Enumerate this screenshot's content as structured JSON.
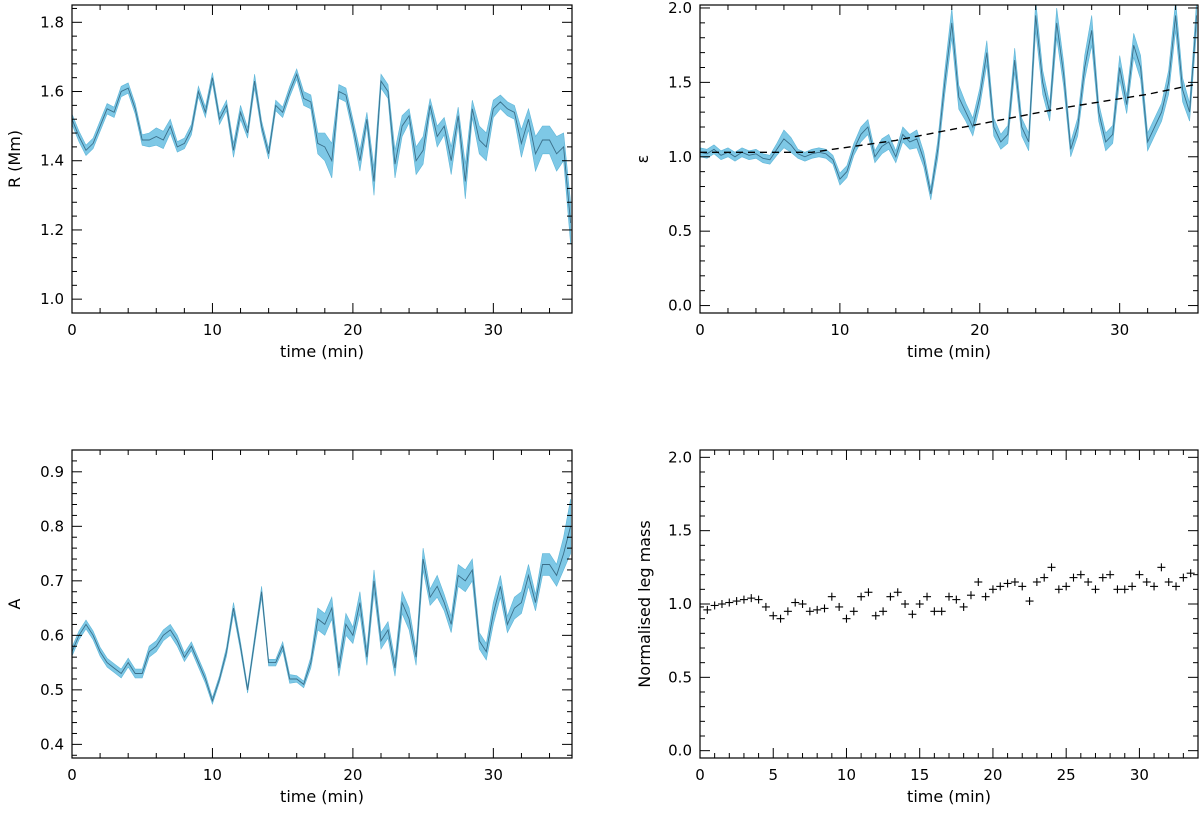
{
  "chart_data": [
    {
      "type": "area",
      "id": "r",
      "xlabel": "time (min)",
      "ylabel": "R (Mm)",
      "xlim": [
        0,
        35.6
      ],
      "ylim": [
        0.96,
        1.85
      ],
      "xticks": [
        0,
        10,
        20,
        30
      ],
      "yticks": [
        1.0,
        1.2,
        1.4,
        1.6,
        1.8
      ],
      "ytick_labels": [
        "1.0",
        "1.2",
        "1.4",
        "1.6",
        "1.8"
      ],
      "x": [
        0,
        0.5,
        1,
        1.5,
        2,
        2.5,
        3,
        3.5,
        4,
        4.5,
        5,
        5.5,
        6,
        6.5,
        7,
        7.5,
        8,
        8.5,
        9,
        9.5,
        10,
        10.5,
        11,
        11.5,
        12,
        12.5,
        13,
        13.5,
        14,
        14.5,
        15,
        15.5,
        16,
        16.5,
        17,
        17.5,
        18,
        18.5,
        19,
        19.5,
        20,
        20.5,
        21,
        21.5,
        22,
        22.5,
        23,
        23.5,
        24,
        24.5,
        25,
        25.5,
        26,
        26.5,
        27,
        27.5,
        28,
        28.5,
        29,
        29.5,
        30,
        30.5,
        31,
        31.5,
        32,
        32.5,
        33,
        33.5,
        34,
        34.5,
        35,
        35.5
      ],
      "y": [
        1.52,
        1.47,
        1.43,
        1.45,
        1.5,
        1.55,
        1.54,
        1.6,
        1.61,
        1.55,
        1.46,
        1.46,
        1.47,
        1.46,
        1.5,
        1.44,
        1.45,
        1.49,
        1.6,
        1.54,
        1.64,
        1.52,
        1.56,
        1.43,
        1.54,
        1.48,
        1.63,
        1.5,
        1.42,
        1.56,
        1.54,
        1.6,
        1.65,
        1.58,
        1.57,
        1.45,
        1.44,
        1.4,
        1.6,
        1.59,
        1.5,
        1.4,
        1.52,
        1.34,
        1.63,
        1.6,
        1.39,
        1.5,
        1.53,
        1.4,
        1.43,
        1.56,
        1.47,
        1.5,
        1.4,
        1.53,
        1.34,
        1.55,
        1.46,
        1.44,
        1.55,
        1.57,
        1.55,
        1.54,
        1.45,
        1.52,
        1.42,
        1.46,
        1.46,
        1.42,
        1.44,
        1.22
      ],
      "err": [
        0.015,
        0.015,
        0.015,
        0.015,
        0.015,
        0.015,
        0.015,
        0.015,
        0.015,
        0.015,
        0.015,
        0.02,
        0.025,
        0.025,
        0.02,
        0.015,
        0.015,
        0.015,
        0.015,
        0.015,
        0.015,
        0.015,
        0.015,
        0.02,
        0.02,
        0.015,
        0.02,
        0.015,
        0.015,
        0.015,
        0.015,
        0.015,
        0.015,
        0.02,
        0.02,
        0.03,
        0.04,
        0.05,
        0.02,
        0.02,
        0.02,
        0.03,
        0.02,
        0.04,
        0.02,
        0.02,
        0.04,
        0.03,
        0.02,
        0.04,
        0.04,
        0.02,
        0.03,
        0.025,
        0.04,
        0.025,
        0.05,
        0.025,
        0.04,
        0.04,
        0.025,
        0.02,
        0.02,
        0.02,
        0.04,
        0.03,
        0.05,
        0.04,
        0.04,
        0.05,
        0.04,
        0.06
      ]
    },
    {
      "type": "area",
      "id": "eps",
      "xlabel": "time (min)",
      "ylabel": "ε",
      "xlim": [
        0,
        35.6
      ],
      "ylim": [
        -0.05,
        2.02
      ],
      "xticks": [
        0,
        10,
        20,
        30
      ],
      "yticks": [
        0.0,
        0.5,
        1.0,
        1.5,
        2.0
      ],
      "ytick_labels": [
        "0.0",
        "0.5",
        "1.0",
        "1.5",
        "2.0"
      ],
      "x": [
        0,
        0.5,
        1,
        1.5,
        2,
        2.5,
        3,
        3.5,
        4,
        4.5,
        5,
        5.5,
        6,
        6.5,
        7,
        7.5,
        8,
        8.5,
        9,
        9.5,
        10,
        10.5,
        11,
        11.5,
        12,
        12.5,
        13,
        13.5,
        14,
        14.5,
        15,
        15.5,
        16,
        16.5,
        17,
        17.5,
        18,
        18.5,
        19,
        19.5,
        20,
        20.5,
        21,
        21.5,
        22,
        22.5,
        23,
        23.5,
        24,
        24.5,
        25,
        25.5,
        26,
        26.5,
        27,
        27.5,
        28,
        28.5,
        29,
        29.5,
        30,
        30.5,
        31,
        31.5,
        32,
        32.5,
        33,
        33.5,
        34,
        34.5,
        35,
        35.5
      ],
      "y": [
        1.03,
        1.02,
        1.05,
        1.01,
        1.03,
        1.0,
        1.03,
        1.01,
        1.02,
        0.99,
        0.98,
        1.05,
        1.12,
        1.08,
        1.02,
        1.0,
        1.02,
        1.03,
        1.02,
        0.98,
        0.85,
        0.9,
        1.05,
        1.15,
        1.2,
        1.0,
        1.07,
        1.1,
        1.0,
        1.15,
        1.1,
        1.12,
        0.98,
        0.75,
        1.05,
        1.5,
        1.9,
        1.4,
        1.3,
        1.2,
        1.4,
        1.7,
        1.2,
        1.1,
        1.15,
        1.65,
        1.2,
        1.1,
        1.95,
        1.5,
        1.3,
        1.9,
        1.55,
        1.05,
        1.2,
        1.6,
        1.85,
        1.3,
        1.1,
        1.15,
        1.6,
        1.35,
        1.75,
        1.6,
        1.1,
        1.2,
        1.3,
        1.5,
        1.95,
        1.45,
        1.3,
        1.95
      ],
      "err": [
        0.03,
        0.03,
        0.03,
        0.03,
        0.03,
        0.03,
        0.03,
        0.03,
        0.03,
        0.03,
        0.03,
        0.04,
        0.06,
        0.05,
        0.03,
        0.03,
        0.03,
        0.03,
        0.03,
        0.03,
        0.04,
        0.04,
        0.04,
        0.05,
        0.05,
        0.04,
        0.05,
        0.05,
        0.04,
        0.05,
        0.05,
        0.06,
        0.05,
        0.04,
        0.06,
        0.08,
        0.1,
        0.08,
        0.06,
        0.06,
        0.06,
        0.08,
        0.06,
        0.05,
        0.06,
        0.08,
        0.06,
        0.06,
        0.1,
        0.08,
        0.06,
        0.1,
        0.08,
        0.05,
        0.06,
        0.08,
        0.1,
        0.06,
        0.06,
        0.06,
        0.08,
        0.06,
        0.08,
        0.08,
        0.06,
        0.06,
        0.06,
        0.08,
        0.1,
        0.08,
        0.06,
        0.1
      ],
      "trend": {
        "x": [
          0,
          8,
          14,
          20,
          26,
          32,
          35.6
        ],
        "y": [
          1.03,
          1.03,
          1.11,
          1.22,
          1.33,
          1.42,
          1.49
        ]
      }
    },
    {
      "type": "area",
      "id": "a",
      "xlabel": "time (min)",
      "ylabel": "A",
      "xlim": [
        0,
        35.6
      ],
      "ylim": [
        0.375,
        0.94
      ],
      "xticks": [
        0,
        10,
        20,
        30
      ],
      "yticks": [
        0.4,
        0.5,
        0.6,
        0.7,
        0.8,
        0.9
      ],
      "ytick_labels": [
        "0.4",
        "0.5",
        "0.6",
        "0.7",
        "0.8",
        "0.9"
      ],
      "x": [
        0,
        0.5,
        1,
        1.5,
        2,
        2.5,
        3,
        3.5,
        4,
        4.5,
        5,
        5.5,
        6,
        6.5,
        7,
        7.5,
        8,
        8.5,
        9,
        9.5,
        10,
        10.5,
        11,
        11.5,
        12,
        12.5,
        13,
        13.5,
        14,
        14.5,
        15,
        15.5,
        16,
        16.5,
        17,
        17.5,
        18,
        18.5,
        19,
        19.5,
        20,
        20.5,
        21,
        21.5,
        22,
        22.5,
        23,
        23.5,
        24,
        24.5,
        25,
        25.5,
        26,
        26.5,
        27,
        27.5,
        28,
        28.5,
        29,
        29.5,
        30,
        30.5,
        31,
        31.5,
        32,
        32.5,
        33,
        33.5,
        34,
        34.5,
        35,
        35.5
      ],
      "y": [
        0.57,
        0.6,
        0.62,
        0.6,
        0.57,
        0.55,
        0.54,
        0.53,
        0.55,
        0.53,
        0.53,
        0.57,
        0.58,
        0.6,
        0.61,
        0.59,
        0.56,
        0.58,
        0.55,
        0.52,
        0.48,
        0.52,
        0.57,
        0.65,
        0.58,
        0.5,
        0.59,
        0.68,
        0.55,
        0.55,
        0.58,
        0.52,
        0.52,
        0.51,
        0.55,
        0.63,
        0.62,
        0.65,
        0.54,
        0.62,
        0.6,
        0.66,
        0.56,
        0.7,
        0.59,
        0.61,
        0.54,
        0.66,
        0.63,
        0.56,
        0.74,
        0.67,
        0.69,
        0.66,
        0.62,
        0.71,
        0.7,
        0.72,
        0.59,
        0.57,
        0.64,
        0.69,
        0.62,
        0.65,
        0.66,
        0.71,
        0.66,
        0.73,
        0.73,
        0.71,
        0.75,
        0.8
      ],
      "err": [
        0.008,
        0.008,
        0.008,
        0.008,
        0.008,
        0.008,
        0.008,
        0.008,
        0.008,
        0.008,
        0.008,
        0.01,
        0.01,
        0.01,
        0.01,
        0.01,
        0.008,
        0.008,
        0.008,
        0.008,
        0.006,
        0.006,
        0.008,
        0.01,
        0.008,
        0.006,
        0.008,
        0.01,
        0.006,
        0.006,
        0.008,
        0.008,
        0.006,
        0.006,
        0.01,
        0.02,
        0.02,
        0.02,
        0.015,
        0.02,
        0.015,
        0.02,
        0.015,
        0.02,
        0.015,
        0.015,
        0.015,
        0.02,
        0.02,
        0.015,
        0.02,
        0.015,
        0.02,
        0.015,
        0.015,
        0.02,
        0.02,
        0.02,
        0.015,
        0.015,
        0.02,
        0.02,
        0.015,
        0.02,
        0.02,
        0.02,
        0.015,
        0.02,
        0.02,
        0.02,
        0.03,
        0.05
      ]
    },
    {
      "type": "scatter",
      "id": "mass",
      "xlabel": "time (min)",
      "ylabel": "Normalised leg mass",
      "xlim": [
        0,
        34
      ],
      "ylim": [
        -0.05,
        2.05
      ],
      "xticks": [
        0,
        5,
        10,
        15,
        20,
        25,
        30
      ],
      "yticks": [
        0.0,
        0.5,
        1.0,
        1.5,
        2.0
      ],
      "ytick_labels": [
        "0.0",
        "0.5",
        "1.0",
        "1.5",
        "2.0"
      ],
      "x": [
        0,
        0.5,
        1,
        1.5,
        2,
        2.5,
        3,
        3.5,
        4,
        4.5,
        5,
        5.5,
        6,
        6.5,
        7,
        7.5,
        8,
        8.5,
        9,
        9.5,
        10,
        10.5,
        11,
        11.5,
        12,
        12.5,
        13,
        13.5,
        14,
        14.5,
        15,
        15.5,
        16,
        16.5,
        17,
        17.5,
        18,
        18.5,
        19,
        19.5,
        20,
        20.5,
        21,
        21.5,
        22,
        22.5,
        23,
        23.5,
        24,
        24.5,
        25,
        25.5,
        26,
        26.5,
        27,
        27.5,
        28,
        28.5,
        29,
        29.5,
        30,
        30.5,
        31,
        31.5,
        32,
        32.5,
        33,
        33.5
      ],
      "y": [
        0.98,
        0.96,
        0.99,
        1.0,
        1.01,
        1.02,
        1.03,
        1.04,
        1.03,
        0.98,
        0.92,
        0.9,
        0.95,
        1.01,
        1.0,
        0.95,
        0.96,
        0.97,
        1.05,
        0.98,
        0.9,
        0.95,
        1.05,
        1.08,
        0.92,
        0.95,
        1.05,
        1.08,
        1.0,
        0.93,
        1.0,
        1.05,
        0.95,
        0.95,
        1.05,
        1.03,
        0.98,
        1.06,
        1.15,
        1.05,
        1.1,
        1.12,
        1.14,
        1.15,
        1.12,
        1.02,
        1.15,
        1.18,
        1.25,
        1.1,
        1.12,
        1.18,
        1.2,
        1.15,
        1.1,
        1.18,
        1.2,
        1.1,
        1.1,
        1.12,
        1.2,
        1.15,
        1.12,
        1.25,
        1.15,
        1.12,
        1.18,
        1.21
      ]
    }
  ]
}
